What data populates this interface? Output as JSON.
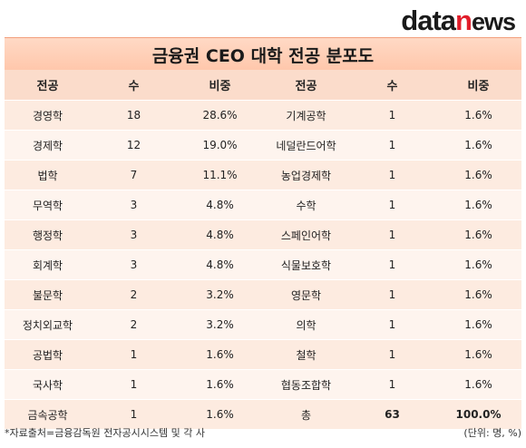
{
  "logo": {
    "part1": "data",
    "part2": "n",
    "part3": "ews"
  },
  "title": "금융권 CEO 대학 전공 분포도",
  "headers": [
    "전공",
    "수",
    "비중",
    "전공",
    "수",
    "비중"
  ],
  "rows": [
    [
      "경영학",
      "18",
      "28.6%",
      "기계공학",
      "1",
      "1.6%"
    ],
    [
      "경제학",
      "12",
      "19.0%",
      "네덜란드어학",
      "1",
      "1.6%"
    ],
    [
      "법학",
      "7",
      "11.1%",
      "농업경제학",
      "1",
      "1.6%"
    ],
    [
      "무역학",
      "3",
      "4.8%",
      "수학",
      "1",
      "1.6%"
    ],
    [
      "행정학",
      "3",
      "4.8%",
      "스페인어학",
      "1",
      "1.6%"
    ],
    [
      "회계학",
      "3",
      "4.8%",
      "식물보호학",
      "1",
      "1.6%"
    ],
    [
      "불문학",
      "2",
      "3.2%",
      "영문학",
      "1",
      "1.6%"
    ],
    [
      "정치외교학",
      "2",
      "3.2%",
      "의학",
      "1",
      "1.6%"
    ],
    [
      "공법학",
      "1",
      "1.6%",
      "철학",
      "1",
      "1.6%"
    ],
    [
      "국사학",
      "1",
      "1.6%",
      "협동조합학",
      "1",
      "1.6%"
    ],
    [
      "금속공학",
      "1",
      "1.6%",
      "총",
      "63",
      "100.0%"
    ]
  ],
  "footer": {
    "source": "*자료출처=금융감독원 전자공시시스템 및 각 사",
    "unit": "(단위: 명, %)"
  }
}
